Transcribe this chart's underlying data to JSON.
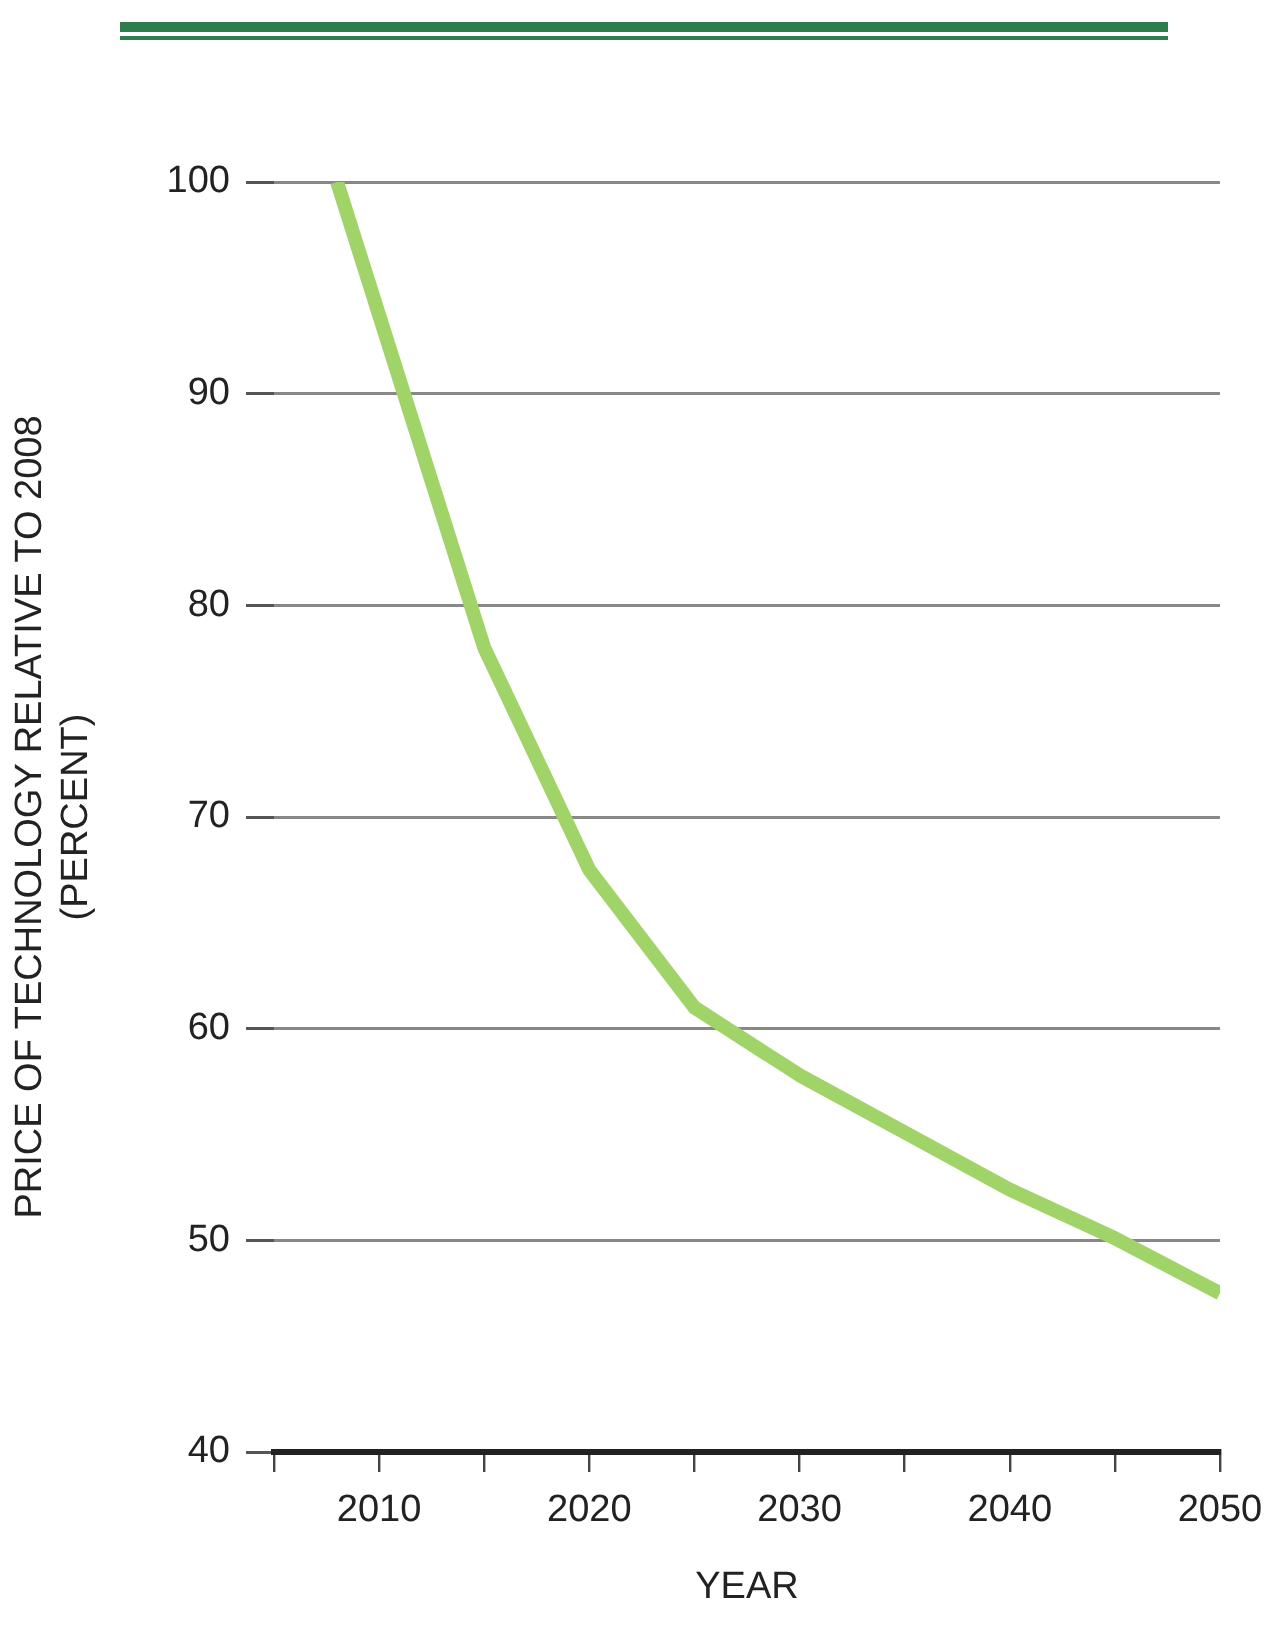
{
  "chart_data": {
    "type": "line",
    "xlabel": "YEAR",
    "ylabel": "PRICE OF TECHNOLOGY RELATIVE TO 2008\n(PERCENT)",
    "x": [
      2008,
      2015,
      2020,
      2025,
      2030,
      2035,
      2040,
      2045,
      2050
    ],
    "series": [
      {
        "color": "#a0d468",
        "values": [
          100,
          78,
          67.5,
          61,
          57.8,
          55.1,
          52.4,
          50.1,
          47.5
        ]
      }
    ],
    "xlim": [
      2005,
      2050
    ],
    "xticks": [
      {
        "value": 2005,
        "label": null
      },
      2010,
      {
        "value": 2015,
        "label": null
      },
      2020,
      {
        "value": 2025,
        "label": null
      },
      2030,
      {
        "value": 2035,
        "label": null
      },
      2040,
      {
        "value": 2045,
        "label": null
      },
      2050
    ],
    "ylim": [
      40,
      100
    ],
    "yticks": [
      40,
      50,
      60,
      70,
      80,
      90,
      100
    ],
    "grid": "y",
    "legend": false,
    "marker": "none",
    "line_style": "solid"
  }
}
